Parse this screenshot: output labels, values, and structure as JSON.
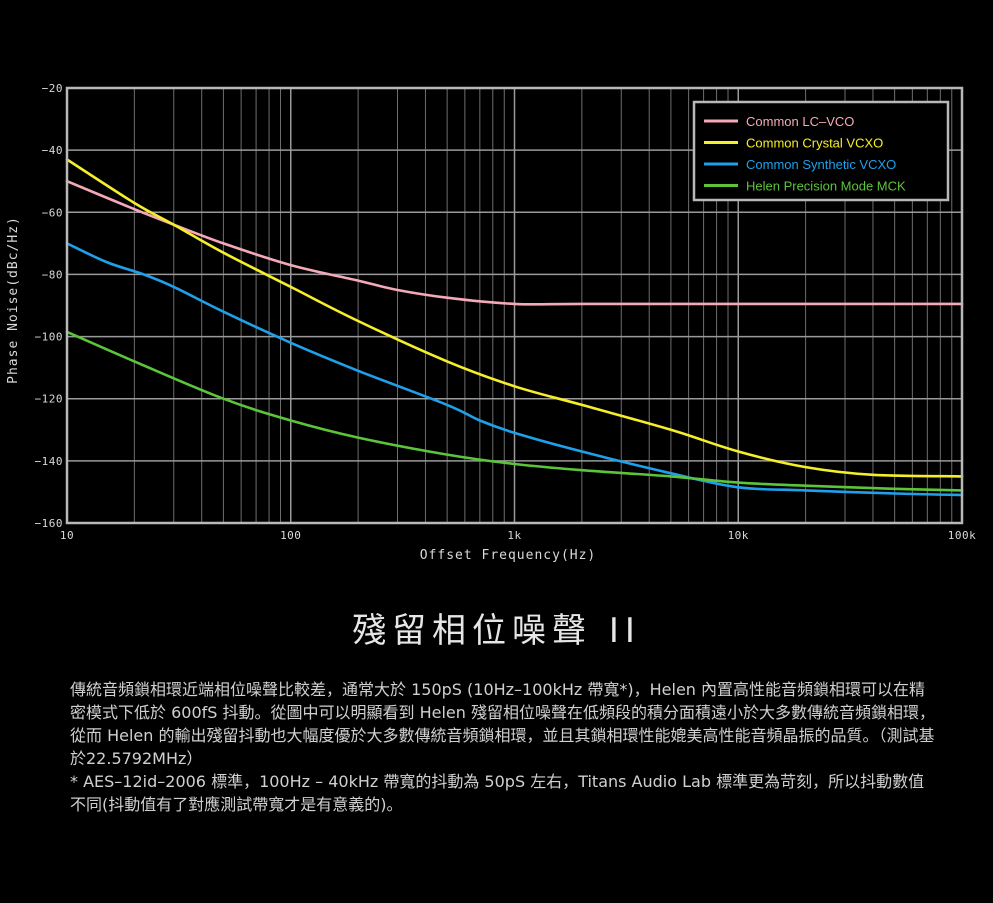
{
  "colors": {
    "background": "#000000",
    "grid": "#6e6e6e",
    "lc_vco": "#f4a9b8",
    "crystal": "#f5ee2a",
    "synthetic": "#1ea0ea",
    "helen": "#5cc43a"
  },
  "chart_data": {
    "type": "line",
    "xscale": "log",
    "xlim": [
      10,
      100000
    ],
    "ylim": [
      -160,
      -20
    ],
    "xlabel": "Offset Frequency(Hz)",
    "ylabel": "Phase Noise(dBc/Hz)",
    "x_ticks": [
      {
        "value": 10,
        "label": "10"
      },
      {
        "value": 100,
        "label": "100"
      },
      {
        "value": 1000,
        "label": "1k"
      },
      {
        "value": 10000,
        "label": "10k"
      },
      {
        "value": 100000,
        "label": "100k"
      }
    ],
    "y_ticks": [
      {
        "value": -20,
        "label": "−20"
      },
      {
        "value": -40,
        "label": "−40"
      },
      {
        "value": -60,
        "label": "−60"
      },
      {
        "value": -80,
        "label": "−80"
      },
      {
        "value": -100,
        "label": "−100"
      },
      {
        "value": -120,
        "label": "−120"
      },
      {
        "value": -140,
        "label": "−140"
      },
      {
        "value": -160,
        "label": "−160"
      }
    ],
    "grid": true,
    "legend_position": "top-right",
    "series": [
      {
        "name": "Common LC–VCO",
        "color": "#f4a9b8",
        "points": [
          [
            10,
            -50
          ],
          [
            20,
            -59
          ],
          [
            30,
            -64
          ],
          [
            50,
            -70
          ],
          [
            100,
            -77
          ],
          [
            200,
            -82
          ],
          [
            300,
            -85
          ],
          [
            500,
            -87.5
          ],
          [
            1000,
            -89.5
          ],
          [
            2000,
            -89.5
          ],
          [
            10000,
            -89.5
          ],
          [
            100000,
            -89.5
          ]
        ]
      },
      {
        "name": "Common Crystal VCXO",
        "color": "#f5ee2a",
        "points": [
          [
            10,
            -43
          ],
          [
            20,
            -57
          ],
          [
            30,
            -64
          ],
          [
            50,
            -73
          ],
          [
            100,
            -84
          ],
          [
            200,
            -95
          ],
          [
            500,
            -108
          ],
          [
            1000,
            -116
          ],
          [
            2000,
            -122
          ],
          [
            5000,
            -130
          ],
          [
            10000,
            -137
          ],
          [
            20000,
            -142
          ],
          [
            40000,
            -144.5
          ],
          [
            100000,
            -145
          ]
        ]
      },
      {
        "name": "Common Synthetic VCXO",
        "color": "#1ea0ea",
        "points": [
          [
            10,
            -70
          ],
          [
            15,
            -76
          ],
          [
            22,
            -80
          ],
          [
            30,
            -84
          ],
          [
            50,
            -92
          ],
          [
            100,
            -102
          ],
          [
            200,
            -111
          ],
          [
            500,
            -122
          ],
          [
            700,
            -127
          ],
          [
            1000,
            -131
          ],
          [
            2000,
            -137
          ],
          [
            5000,
            -144
          ],
          [
            10000,
            -148.5
          ],
          [
            20000,
            -149.5
          ],
          [
            50000,
            -150.5
          ],
          [
            100000,
            -151
          ]
        ]
      },
      {
        "name": "Helen Precision Mode MCK",
        "color": "#5cc43a",
        "points": [
          [
            10,
            -98.5
          ],
          [
            20,
            -108
          ],
          [
            50,
            -120
          ],
          [
            100,
            -127
          ],
          [
            200,
            -132.5
          ],
          [
            500,
            -138
          ],
          [
            1000,
            -141
          ],
          [
            2000,
            -143
          ],
          [
            5000,
            -145
          ],
          [
            10000,
            -147
          ],
          [
            20000,
            -148
          ],
          [
            50000,
            -149
          ],
          [
            100000,
            -149.5
          ]
        ]
      }
    ]
  },
  "heading": "殘留相位噪聲 II",
  "description": {
    "paragraph1": "傳統音頻鎖相環近端相位噪聲比較差，通常大於 150pS (10Hz–100kHz 帶寬*)，Helen 內置高性能音頻鎖相環可以在精密模式下低於 600fS 抖動。從圖中可以明顯看到 Helen 殘留相位噪聲在低頻段的積分面積遠小於大多數傳統音頻鎖相環，從而 Helen 的輸出殘留抖動也大幅度優於大多數傳統音頻鎖相環，並且其鎖相環性能媲美高性能音頻晶振的品質。（測試基於22.5792MHz）",
    "footnote": "* AES–12id–2006 標準，100Hz – 40kHz 帶寬的抖動為 50pS 左右，Titans Audio Lab 標準更為苛刻，所以抖動數值不同(抖動值有了對應測試帶寬才是有意義的)。"
  }
}
